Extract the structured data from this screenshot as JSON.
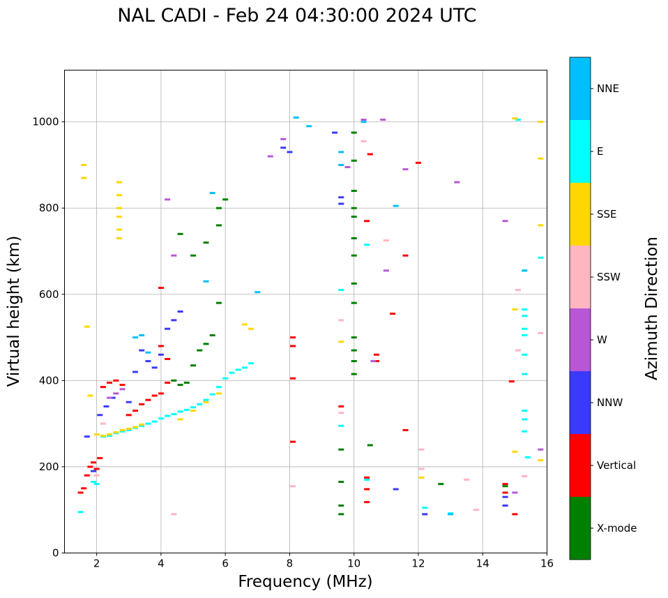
{
  "chart_data": {
    "type": "scatter",
    "title": "NAL CADI - Feb 24 04:30:00 2024 UTC",
    "xlabel": "Frequency (MHz)",
    "ylabel": "Virtual height (km)",
    "xlim": [
      1,
      16
    ],
    "ylim": [
      0,
      1120
    ],
    "xticks": [
      2,
      4,
      6,
      8,
      10,
      12,
      14,
      16
    ],
    "yticks": [
      0,
      200,
      400,
      600,
      800,
      1000
    ],
    "grid": true,
    "colorbar": {
      "label": "Azimuth Direction",
      "position": "right",
      "categories": [
        {
          "name": "X-mode",
          "color": "#008000"
        },
        {
          "name": "Vertical",
          "color": "#ff0000"
        },
        {
          "name": "NNW",
          "color": "#3a3aff"
        },
        {
          "name": "W",
          "color": "#b857d6"
        },
        {
          "name": "SSW",
          "color": "#ffb6c1"
        },
        {
          "name": "SSE",
          "color": "#ffd700"
        },
        {
          "name": "E",
          "color": "#00ffff"
        },
        {
          "name": "NNE",
          "color": "#00bfff"
        }
      ]
    },
    "series": [
      {
        "name": "E",
        "points": [
          [
            1.9,
            165
          ],
          [
            2.0,
            160
          ],
          [
            2.2,
            270
          ],
          [
            2.4,
            272
          ],
          [
            2.6,
            278
          ],
          [
            2.8,
            282
          ],
          [
            3.0,
            285
          ],
          [
            3.2,
            290
          ],
          [
            3.4,
            295
          ],
          [
            3.6,
            300
          ],
          [
            3.8,
            305
          ],
          [
            4.0,
            312
          ],
          [
            4.2,
            318
          ],
          [
            4.4,
            322
          ],
          [
            4.6,
            328
          ],
          [
            4.8,
            332
          ],
          [
            5.0,
            338
          ],
          [
            5.2,
            345
          ],
          [
            5.4,
            355
          ],
          [
            5.6,
            368
          ],
          [
            5.8,
            385
          ],
          [
            6.0,
            405
          ],
          [
            6.2,
            418
          ],
          [
            6.4,
            425
          ],
          [
            6.6,
            430
          ],
          [
            6.8,
            440
          ],
          [
            1.5,
            95
          ],
          [
            9.6,
            295
          ],
          [
            9.6,
            610
          ],
          [
            10.4,
            715
          ],
          [
            10.4,
            170
          ],
          [
            12.2,
            105
          ],
          [
            13.0,
            92
          ],
          [
            15.1,
            1005
          ],
          [
            15.3,
            655
          ],
          [
            15.3,
            565
          ],
          [
            15.3,
            550
          ],
          [
            15.3,
            520
          ],
          [
            15.3,
            505
          ],
          [
            15.3,
            460
          ],
          [
            15.3,
            415
          ],
          [
            15.3,
            330
          ],
          [
            15.3,
            310
          ],
          [
            15.3,
            282
          ],
          [
            15.4,
            222
          ],
          [
            15.8,
            685
          ]
        ]
      },
      {
        "name": "SSE",
        "points": [
          [
            1.6,
            900
          ],
          [
            1.6,
            870
          ],
          [
            1.7,
            525
          ],
          [
            1.8,
            365
          ],
          [
            2.0,
            275
          ],
          [
            2.2,
            272
          ],
          [
            2.4,
            275
          ],
          [
            2.6,
            280
          ],
          [
            2.8,
            285
          ],
          [
            3.0,
            288
          ],
          [
            3.2,
            292
          ],
          [
            3.4,
            298
          ],
          [
            2.7,
            860
          ],
          [
            2.7,
            830
          ],
          [
            2.7,
            800
          ],
          [
            2.7,
            780
          ],
          [
            2.7,
            750
          ],
          [
            2.7,
            730
          ],
          [
            4.6,
            310
          ],
          [
            5.0,
            330
          ],
          [
            5.4,
            350
          ],
          [
            5.8,
            370
          ],
          [
            6.6,
            530
          ],
          [
            6.8,
            520
          ],
          [
            9.6,
            490
          ],
          [
            12.1,
            175
          ],
          [
            15.0,
            1008
          ],
          [
            15.0,
            565
          ],
          [
            15.0,
            235
          ],
          [
            15.8,
            1000
          ],
          [
            15.8,
            915
          ],
          [
            15.8,
            760
          ],
          [
            15.8,
            215
          ]
        ]
      },
      {
        "name": "Vertical",
        "points": [
          [
            1.5,
            140
          ],
          [
            1.6,
            150
          ],
          [
            1.7,
            180
          ],
          [
            1.8,
            200
          ],
          [
            1.9,
            210
          ],
          [
            2.0,
            195
          ],
          [
            2.1,
            220
          ],
          [
            2.2,
            385
          ],
          [
            2.4,
            395
          ],
          [
            2.6,
            400
          ],
          [
            2.8,
            390
          ],
          [
            3.0,
            320
          ],
          [
            3.2,
            330
          ],
          [
            3.4,
            345
          ],
          [
            3.6,
            355
          ],
          [
            3.8,
            365
          ],
          [
            4.0,
            370
          ],
          [
            4.2,
            395
          ],
          [
            4.0,
            615
          ],
          [
            4.0,
            480
          ],
          [
            4.2,
            450
          ],
          [
            8.1,
            500
          ],
          [
            8.1,
            480
          ],
          [
            8.1,
            405
          ],
          [
            8.1,
            258
          ],
          [
            9.6,
            340
          ],
          [
            10.4,
            175
          ],
          [
            10.4,
            148
          ],
          [
            10.4,
            118
          ],
          [
            10.4,
            770
          ],
          [
            10.5,
            925
          ],
          [
            10.7,
            460
          ],
          [
            10.7,
            445
          ],
          [
            11.2,
            555
          ],
          [
            11.6,
            690
          ],
          [
            11.6,
            285
          ],
          [
            12.0,
            905
          ],
          [
            14.7,
            160
          ],
          [
            14.7,
            140
          ],
          [
            14.9,
            398
          ],
          [
            15.0,
            90
          ]
        ]
      },
      {
        "name": "X-mode",
        "points": [
          [
            4.4,
            400
          ],
          [
            4.6,
            390
          ],
          [
            4.8,
            395
          ],
          [
            5.0,
            435
          ],
          [
            5.2,
            470
          ],
          [
            5.4,
            485
          ],
          [
            5.6,
            505
          ],
          [
            5.8,
            580
          ],
          [
            4.6,
            740
          ],
          [
            5.0,
            690
          ],
          [
            5.4,
            720
          ],
          [
            5.8,
            760
          ],
          [
            5.8,
            800
          ],
          [
            6.0,
            820
          ],
          [
            9.6,
            240
          ],
          [
            9.6,
            165
          ],
          [
            9.6,
            110
          ],
          [
            9.6,
            90
          ],
          [
            10.0,
            975
          ],
          [
            10.0,
            910
          ],
          [
            10.0,
            840
          ],
          [
            10.0,
            800
          ],
          [
            10.0,
            780
          ],
          [
            10.0,
            730
          ],
          [
            10.0,
            690
          ],
          [
            10.0,
            625
          ],
          [
            10.0,
            580
          ],
          [
            10.0,
            500
          ],
          [
            10.0,
            470
          ],
          [
            10.0,
            445
          ],
          [
            10.0,
            415
          ],
          [
            10.5,
            250
          ],
          [
            12.7,
            160
          ],
          [
            14.7,
            155
          ]
        ]
      },
      {
        "name": "NNW",
        "points": [
          [
            1.7,
            270
          ],
          [
            1.9,
            190
          ],
          [
            2.1,
            320
          ],
          [
            2.3,
            340
          ],
          [
            2.5,
            360
          ],
          [
            3.0,
            350
          ],
          [
            3.2,
            420
          ],
          [
            3.4,
            470
          ],
          [
            3.6,
            445
          ],
          [
            3.8,
            430
          ],
          [
            4.0,
            460
          ],
          [
            4.2,
            520
          ],
          [
            4.4,
            540
          ],
          [
            4.6,
            560
          ],
          [
            7.8,
            940
          ],
          [
            8.0,
            930
          ],
          [
            9.4,
            975
          ],
          [
            9.6,
            825
          ],
          [
            9.6,
            810
          ],
          [
            11.3,
            148
          ],
          [
            12.2,
            90
          ],
          [
            14.7,
            130
          ],
          [
            14.7,
            110
          ]
        ]
      },
      {
        "name": "W",
        "points": [
          [
            2.4,
            360
          ],
          [
            2.6,
            370
          ],
          [
            2.8,
            380
          ],
          [
            4.2,
            820
          ],
          [
            4.4,
            690
          ],
          [
            7.4,
            920
          ],
          [
            7.8,
            960
          ],
          [
            9.8,
            895
          ],
          [
            10.3,
            1005
          ],
          [
            10.6,
            445
          ],
          [
            10.9,
            1005
          ],
          [
            11.6,
            890
          ],
          [
            13.2,
            860
          ],
          [
            11.0,
            655
          ],
          [
            14.7,
            770
          ],
          [
            15.0,
            140
          ],
          [
            15.8,
            240
          ]
        ]
      },
      {
        "name": "SSW",
        "points": [
          [
            2.0,
            180
          ],
          [
            2.2,
            300
          ],
          [
            4.4,
            90
          ],
          [
            8.1,
            155
          ],
          [
            9.6,
            540
          ],
          [
            9.6,
            325
          ],
          [
            10.3,
            955
          ],
          [
            11.0,
            725
          ],
          [
            12.1,
            240
          ],
          [
            12.1,
            195
          ],
          [
            13.5,
            170
          ],
          [
            13.8,
            100
          ],
          [
            15.1,
            610
          ],
          [
            15.1,
            470
          ],
          [
            15.3,
            178
          ],
          [
            15.8,
            510
          ]
        ]
      },
      {
        "name": "NNE",
        "points": [
          [
            3.2,
            500
          ],
          [
            3.4,
            505
          ],
          [
            3.6,
            465
          ],
          [
            5.4,
            630
          ],
          [
            5.6,
            835
          ],
          [
            7.0,
            605
          ],
          [
            8.2,
            1010
          ],
          [
            8.6,
            990
          ],
          [
            9.6,
            930
          ],
          [
            9.6,
            900
          ],
          [
            10.3,
            1000
          ],
          [
            11.3,
            805
          ],
          [
            13.0,
            90
          ],
          [
            15.3,
            655
          ]
        ]
      }
    ]
  }
}
